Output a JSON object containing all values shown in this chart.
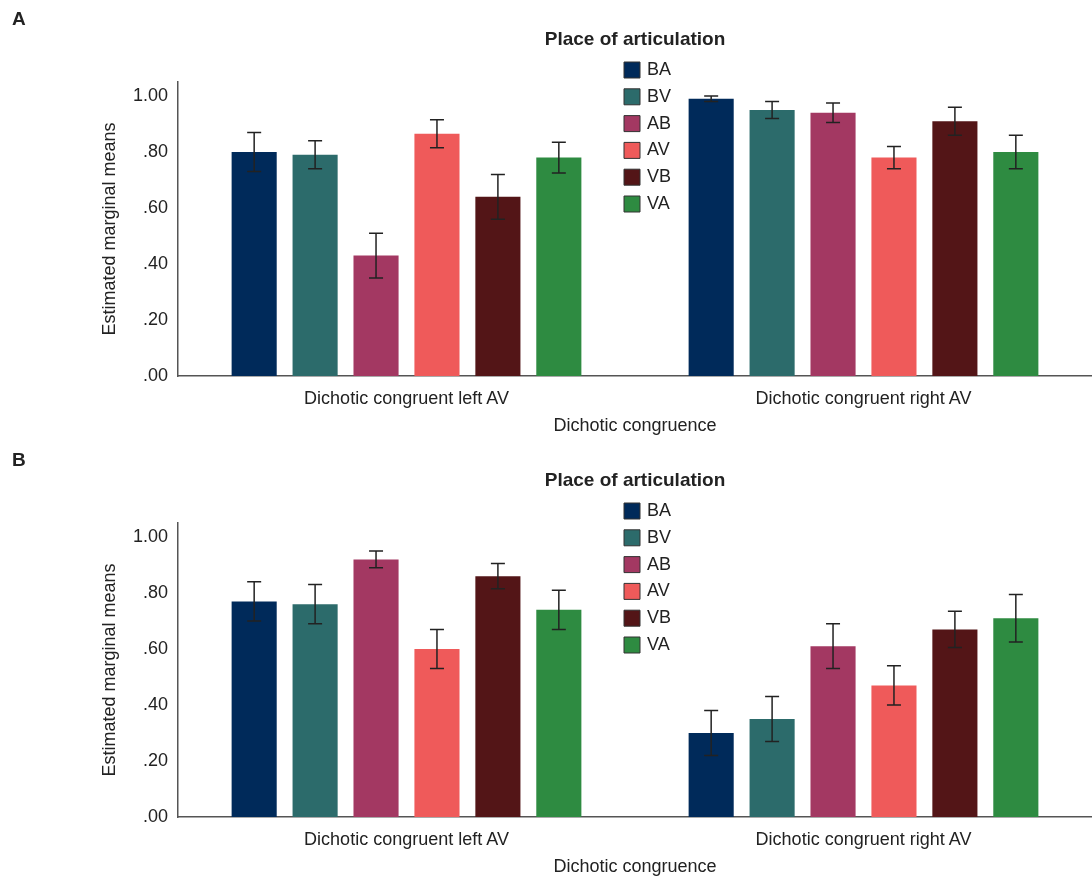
{
  "chart_data": [
    {
      "type": "bar",
      "title": "A",
      "categories": [
        "Dichotic congruent left AV",
        "Dichotic congruent right AV"
      ],
      "xlabel": "Dichotic congruence",
      "ylabel": "Estimated marginal means",
      "legend_title": "Place of articulation",
      "legend": "top",
      "grid": false,
      "ylim": [
        0,
        1.05
      ],
      "yticks": [
        {
          "value": 0,
          "label": ".00"
        },
        {
          "value": 0.2,
          "label": ".20"
        },
        {
          "value": 0.4,
          "label": ".40"
        },
        {
          "value": 0.6,
          "label": ".60"
        },
        {
          "value": 0.8,
          "label": ".80"
        },
        {
          "value": 1,
          "label": "1.00"
        }
      ],
      "series": [
        {
          "name": "BA",
          "color": "#002a5a",
          "values": [
            0.8,
            0.99
          ],
          "errors": [
            0.07,
            0.01
          ]
        },
        {
          "name": "BV",
          "color": "#2c6b6b",
          "values": [
            0.79,
            0.95
          ],
          "errors": [
            0.05,
            0.03
          ]
        },
        {
          "name": "AB",
          "color": "#a33862",
          "values": [
            0.43,
            0.94
          ],
          "errors": [
            0.08,
            0.035
          ]
        },
        {
          "name": "AV",
          "color": "#ef5a5a",
          "values": [
            0.865,
            0.78
          ],
          "errors": [
            0.05,
            0.04
          ]
        },
        {
          "name": "VB",
          "color": "#531517",
          "values": [
            0.64,
            0.91
          ],
          "errors": [
            0.08,
            0.05
          ]
        },
        {
          "name": "VA",
          "color": "#2e8b41",
          "values": [
            0.78,
            0.8
          ],
          "errors": [
            0.055,
            0.06
          ]
        }
      ]
    },
    {
      "type": "bar",
      "title": "B",
      "categories": [
        "Dichotic congruent left AV",
        "Dichotic congruent right AV"
      ],
      "xlabel": "Dichotic congruence",
      "ylabel": "Estimated marginal means",
      "legend_title": "Place of articulation",
      "legend": "top",
      "grid": false,
      "ylim": [
        0,
        1.05
      ],
      "yticks": [
        {
          "value": 0,
          "label": ".00"
        },
        {
          "value": 0.2,
          "label": ".20"
        },
        {
          "value": 0.4,
          "label": ".40"
        },
        {
          "value": 0.6,
          "label": ".60"
        },
        {
          "value": 0.8,
          "label": ".80"
        },
        {
          "value": 1,
          "label": "1.00"
        }
      ],
      "series": [
        {
          "name": "BA",
          "color": "#002a5a",
          "values": [
            0.77,
            0.3
          ],
          "errors": [
            0.07,
            0.08
          ]
        },
        {
          "name": "BV",
          "color": "#2c6b6b",
          "values": [
            0.76,
            0.35
          ],
          "errors": [
            0.07,
            0.08
          ]
        },
        {
          "name": "AB",
          "color": "#a33862",
          "values": [
            0.92,
            0.61
          ],
          "errors": [
            0.03,
            0.08
          ]
        },
        {
          "name": "AV",
          "color": "#ef5a5a",
          "values": [
            0.6,
            0.47
          ],
          "errors": [
            0.07,
            0.07
          ]
        },
        {
          "name": "VB",
          "color": "#531517",
          "values": [
            0.86,
            0.67
          ],
          "errors": [
            0.045,
            0.065
          ]
        },
        {
          "name": "VA",
          "color": "#2e8b41",
          "values": [
            0.74,
            0.71
          ],
          "errors": [
            0.07,
            0.085
          ]
        }
      ]
    }
  ]
}
